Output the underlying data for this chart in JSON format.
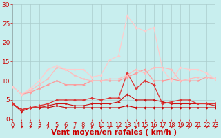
{
  "bg_color": "#c8eeee",
  "grid_color": "#aacccc",
  "xlabel": "Vent moyen/en rafales ( km/h )",
  "xlim": [
    0,
    23
  ],
  "ylim": [
    0,
    30
  ],
  "yticks": [
    0,
    5,
    10,
    15,
    20,
    25,
    30
  ],
  "xticks": [
    0,
    1,
    2,
    3,
    4,
    5,
    6,
    7,
    8,
    9,
    10,
    11,
    12,
    13,
    14,
    15,
    16,
    17,
    18,
    19,
    20,
    21,
    22,
    23
  ],
  "lines": [
    {
      "y": [
        4,
        2,
        3,
        3,
        3,
        3.5,
        3,
        3,
        3,
        3,
        3,
        3,
        3,
        3.5,
        3,
        3,
        3,
        3,
        3,
        3,
        3,
        3,
        3,
        3
      ],
      "color": "#cc0000",
      "lw": 0.8,
      "marker": "D",
      "ms": 1.8
    },
    {
      "y": [
        4,
        2.5,
        3,
        3,
        3.5,
        4,
        4,
        3.5,
        3.5,
        4,
        4,
        4,
        4.5,
        6.5,
        5,
        5,
        5,
        4.5,
        4,
        4,
        4,
        4,
        4,
        3.5
      ],
      "color": "#cc1111",
      "lw": 0.8,
      "marker": "D",
      "ms": 1.8
    },
    {
      "y": [
        4,
        2.5,
        3,
        3.5,
        4,
        5,
        5,
        5,
        5,
        5.5,
        5,
        5.5,
        5.5,
        12,
        8,
        10,
        9,
        4,
        4.5,
        5,
        5,
        4,
        4,
        4
      ],
      "color": "#dd3333",
      "lw": 0.9,
      "marker": "D",
      "ms": 2.0
    },
    {
      "y": [
        8.5,
        6.5,
        7,
        8,
        9,
        10,
        9,
        9,
        9,
        10,
        10,
        10,
        10,
        11,
        12,
        13,
        10,
        10,
        10.5,
        10,
        10,
        10,
        11,
        10.5
      ],
      "color": "#ff9999",
      "lw": 0.9,
      "marker": "D",
      "ms": 1.8
    },
    {
      "y": [
        8.5,
        6.5,
        7.5,
        9,
        10.5,
        13.5,
        13,
        11.5,
        10.5,
        10,
        10,
        10.5,
        10.5,
        11.5,
        13,
        12,
        13.5,
        13.5,
        13,
        10,
        10.5,
        11,
        11,
        10.5
      ],
      "color": "#ffbbbb",
      "lw": 0.9,
      "marker": "D",
      "ms": 1.8
    },
    {
      "y": [
        8.5,
        6.5,
        8,
        10,
        13,
        14,
        13,
        13,
        13,
        11,
        11.5,
        15.5,
        16.5,
        27,
        24,
        23,
        24,
        13,
        10,
        13.5,
        13,
        13,
        12,
        10.5
      ],
      "color": "#ffcccc",
      "lw": 0.9,
      "marker": "D",
      "ms": 1.8
    }
  ],
  "arrow_color": "#cc0000",
  "xlabel_color": "#cc0000",
  "xlabel_fontsize": 7.5,
  "tick_color": "#cc0000",
  "tick_fontsize": 6.0,
  "ytick_fontsize": 6.5
}
